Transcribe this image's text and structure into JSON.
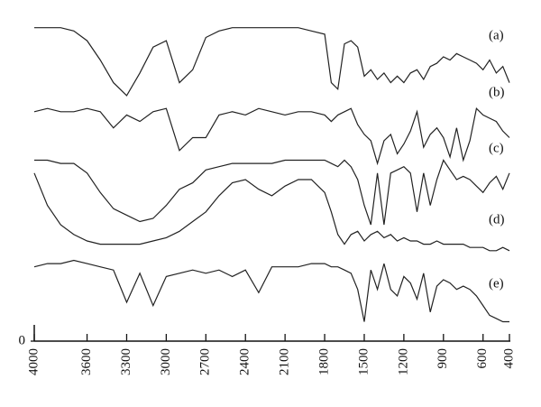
{
  "chart_data": {
    "type": "line",
    "x": [
      4000,
      3900,
      3800,
      3700,
      3600,
      3500,
      3400,
      3300,
      3200,
      3100,
      3000,
      2900,
      2800,
      2700,
      2600,
      2500,
      2400,
      2300,
      2200,
      2100,
      2000,
      1900,
      1800,
      1750,
      1700,
      1650,
      1600,
      1550,
      1500,
      1450,
      1400,
      1350,
      1300,
      1250,
      1200,
      1150,
      1100,
      1050,
      1000,
      950,
      900,
      850,
      800,
      750,
      700,
      650,
      600,
      550,
      500,
      450,
      400
    ],
    "series": [
      {
        "name": "(a)",
        "color": "#222222",
        "values": [
          97,
          97,
          97,
          96,
          93,
          87,
          80,
          76,
          83,
          91,
          93,
          80,
          84,
          94,
          96,
          97,
          97,
          97,
          97,
          97,
          97,
          96,
          95,
          80,
          78,
          92,
          93,
          91,
          82,
          84,
          81,
          83,
          80,
          82,
          80,
          83,
          84,
          81,
          85,
          86,
          88,
          87,
          89,
          88,
          87,
          86,
          84,
          87,
          83,
          85,
          80
        ]
      },
      {
        "name": "(b)",
        "color": "#222222",
        "values": [
          71,
          72,
          71,
          71,
          72,
          71,
          66,
          70,
          68,
          71,
          72,
          59,
          63,
          63,
          70,
          71,
          70,
          72,
          71,
          70,
          71,
          71,
          70,
          68,
          70,
          71,
          72,
          67,
          64,
          62,
          55,
          62,
          64,
          58,
          61,
          65,
          71,
          60,
          64,
          66,
          63,
          57,
          66,
          56,
          62,
          72,
          70,
          69,
          68,
          65,
          63
        ]
      },
      {
        "name": "(c)",
        "color": "#222222",
        "values": [
          56,
          56,
          55,
          55,
          52,
          46,
          41,
          39,
          37,
          38,
          42,
          47,
          49,
          53,
          54,
          55,
          55,
          55,
          55,
          56,
          56,
          56,
          56,
          55,
          54,
          56,
          54,
          50,
          42,
          36,
          52,
          36,
          52,
          53,
          54,
          52,
          40,
          52,
          42,
          50,
          56,
          53,
          50,
          51,
          50,
          48,
          46,
          49,
          51,
          47,
          52
        ]
      },
      {
        "name": "(d)",
        "color": "#222222",
        "values": [
          52,
          42,
          36,
          33,
          31,
          30,
          30,
          30,
          30,
          31,
          32,
          34,
          37,
          40,
          45,
          49,
          50,
          47,
          45,
          48,
          50,
          50,
          46,
          40,
          33,
          30,
          33,
          34,
          31,
          33,
          34,
          32,
          33,
          31,
          32,
          31,
          31,
          30,
          30,
          31,
          30,
          30,
          30,
          30,
          29,
          29,
          29,
          28,
          28,
          29,
          28
        ]
      },
      {
        "name": "(e)",
        "color": "#222222",
        "values": [
          23,
          24,
          24,
          25,
          24,
          23,
          22,
          12,
          21,
          11,
          20,
          21,
          22,
          21,
          22,
          20,
          22,
          15,
          23,
          23,
          23,
          24,
          24,
          23,
          23,
          22,
          21,
          16,
          6,
          22,
          16,
          24,
          16,
          14,
          20,
          18,
          13,
          21,
          9,
          17,
          19,
          18,
          16,
          17,
          16,
          14,
          11,
          8,
          7,
          6,
          6
        ]
      }
    ],
    "xlim": [
      4000,
      400
    ],
    "xticks": [
      4000,
      3600,
      3300,
      3000,
      2700,
      2400,
      2100,
      1800,
      1500,
      1200,
      900,
      600,
      400
    ],
    "ylim": [
      0,
      100
    ],
    "yticks": [
      0
    ]
  }
}
